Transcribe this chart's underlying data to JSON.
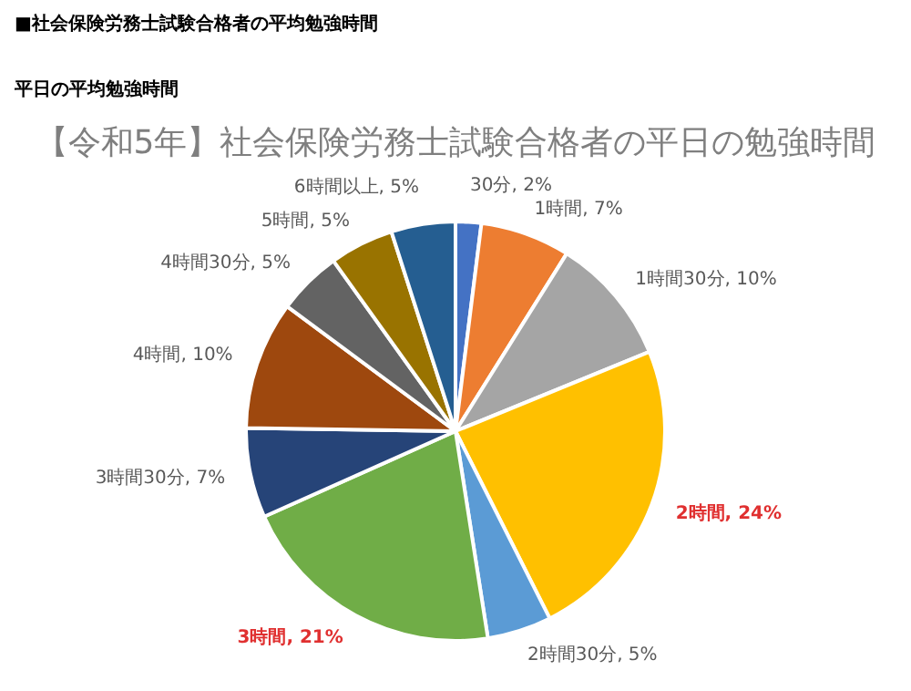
{
  "chart_data": {
    "type": "pie",
    "title": "【令和5年】社会保険労務士試験合格者の平日の勉強時間",
    "annotations": [
      "■社会保険労務士試験合格者の平均勉強時間",
      "平日の平均勉強時間"
    ],
    "categories": [
      "30分",
      "1時間",
      "1時間30分",
      "2時間",
      "2時間30分",
      "3時間",
      "3時間30分",
      "4時間",
      "4時間30分",
      "5時間",
      "6時間以上"
    ],
    "values": [
      2,
      7,
      10,
      24,
      5,
      21,
      7,
      10,
      5,
      5,
      5
    ],
    "value_labels": [
      "2%",
      "7%",
      "10%",
      "24%",
      "5%",
      "21%",
      "7%",
      "10%",
      "5%",
      "5%",
      "5%"
    ],
    "colors": [
      "#4472c4",
      "#ed7d31",
      "#a5a5a5",
      "#ffc000",
      "#5b9bd5",
      "#70ad47",
      "#264478",
      "#9e480e",
      "#636363",
      "#997300",
      "#255e91"
    ],
    "legend": false
  }
}
